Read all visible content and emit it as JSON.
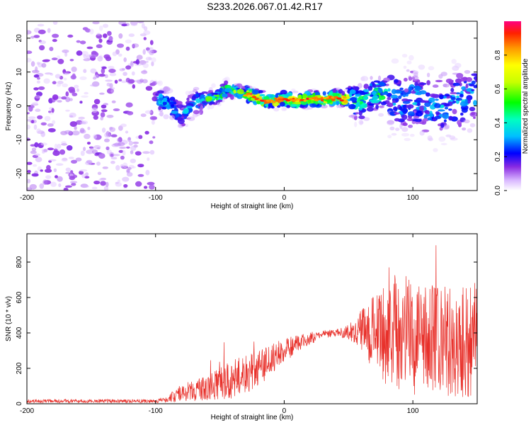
{
  "title": "S233.2026.067.01.42.R17",
  "chart_data": [
    {
      "type": "heatmap",
      "name": "spectrogram",
      "xlabel": "Height of straight line (km)",
      "ylabel": "Frequency (Hz)",
      "xlim": [
        -200,
        150
      ],
      "ylim": [
        -25,
        25
      ],
      "xticks": [
        -200,
        -100,
        0,
        100
      ],
      "xtick_labels": [
        "-200",
        "-100",
        "0",
        "100"
      ],
      "yticks": [
        -20,
        -10,
        0,
        10,
        20
      ],
      "ytick_labels": [
        "-20",
        "-10",
        "0",
        "10",
        "20"
      ],
      "colorbar": {
        "label": "Normalized spectral amplitude",
        "range": [
          0,
          1
        ],
        "ticks": [
          0.0,
          0.2,
          0.4,
          0.6,
          0.8
        ],
        "tick_labels": [
          "0.0",
          "0.2",
          "0.4",
          "0.6",
          "0.8"
        ]
      },
      "ridge": [
        {
          "x": -100,
          "y": 2
        },
        {
          "x": -90,
          "y": 1
        },
        {
          "x": -80,
          "y": -3
        },
        {
          "x": -70,
          "y": 1
        },
        {
          "x": -60,
          "y": 2
        },
        {
          "x": -50,
          "y": 3
        },
        {
          "x": -45,
          "y": 5
        },
        {
          "x": -35,
          "y": 4
        },
        {
          "x": -25,
          "y": 3
        },
        {
          "x": -15,
          "y": 1.5
        },
        {
          "x": -5,
          "y": 1.5
        },
        {
          "x": 0,
          "y": 2
        },
        {
          "x": 10,
          "y": 1.5
        },
        {
          "x": 20,
          "y": 2
        },
        {
          "x": 30,
          "y": 2
        },
        {
          "x": 40,
          "y": 2.5
        },
        {
          "x": 50,
          "y": 2
        },
        {
          "x": 60,
          "y": 1
        },
        {
          "x": 70,
          "y": 4
        },
        {
          "x": 80,
          "y": 3
        },
        {
          "x": 90,
          "y": 1
        },
        {
          "x": 100,
          "y": 2
        },
        {
          "x": 110,
          "y": 0
        },
        {
          "x": 120,
          "y": 0
        },
        {
          "x": 130,
          "y": 1
        },
        {
          "x": 140,
          "y": 2
        },
        {
          "x": 150,
          "y": 4
        }
      ]
    },
    {
      "type": "line",
      "name": "snr",
      "xlabel": "Height of straight line (km)",
      "ylabel": "SNR (10 * v/v)",
      "xlim": [
        -200,
        150
      ],
      "ylim": [
        0,
        960
      ],
      "xticks": [
        -200,
        -100,
        0,
        100
      ],
      "xtick_labels": [
        "-200",
        "-100",
        "0",
        "100"
      ],
      "yticks": [
        0,
        200,
        400,
        600,
        800
      ],
      "ytick_labels": [
        "0",
        "200",
        "400",
        "600",
        "800"
      ],
      "color": "#e8302a",
      "envelope": [
        {
          "x": -200,
          "mean": 15,
          "spread": 10
        },
        {
          "x": -100,
          "mean": 15,
          "spread": 10
        },
        {
          "x": -90,
          "mean": 30,
          "spread": 20
        },
        {
          "x": -80,
          "mean": 60,
          "spread": 50
        },
        {
          "x": -60,
          "mean": 90,
          "spread": 70
        },
        {
          "x": -40,
          "mean": 140,
          "spread": 110
        },
        {
          "x": -25,
          "mean": 180,
          "spread": 110
        },
        {
          "x": -10,
          "mean": 250,
          "spread": 90
        },
        {
          "x": 0,
          "mean": 300,
          "spread": 70
        },
        {
          "x": 10,
          "mean": 340,
          "spread": 50
        },
        {
          "x": 20,
          "mean": 370,
          "spread": 35
        },
        {
          "x": 30,
          "mean": 390,
          "spread": 25
        },
        {
          "x": 40,
          "mean": 400,
          "spread": 20
        },
        {
          "x": 50,
          "mean": 405,
          "spread": 40
        },
        {
          "x": 60,
          "mean": 420,
          "spread": 120
        },
        {
          "x": 70,
          "mean": 400,
          "spread": 220
        },
        {
          "x": 80,
          "mean": 380,
          "spread": 300
        },
        {
          "x": 100,
          "mean": 360,
          "spread": 320
        },
        {
          "x": 120,
          "mean": 350,
          "spread": 320
        },
        {
          "x": 140,
          "mean": 340,
          "spread": 320
        },
        {
          "x": 150,
          "mean": 350,
          "spread": 300
        }
      ]
    }
  ]
}
